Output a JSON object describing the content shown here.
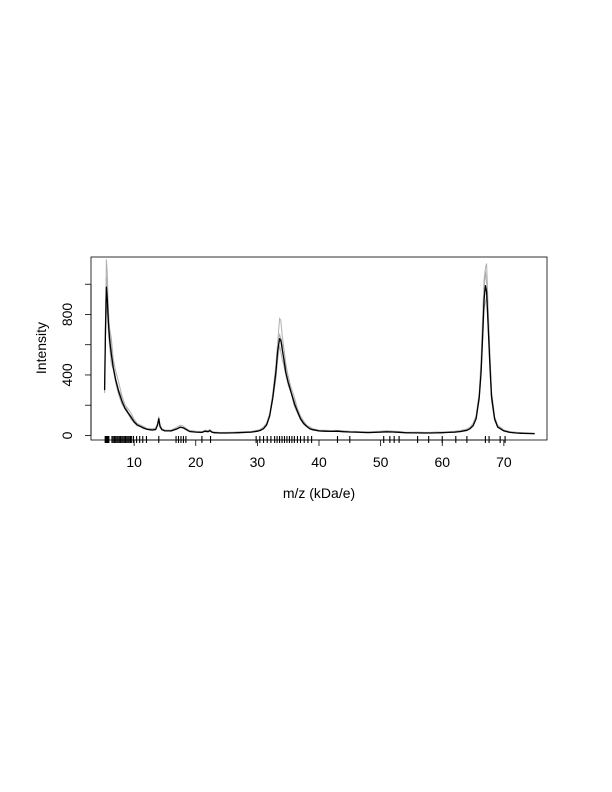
{
  "chart_data": {
    "type": "line",
    "title": "",
    "xlabel": "m/z (kDa/e)",
    "ylabel": "Intensity",
    "xlim": [
      3,
      77
    ],
    "ylim": [
      -30,
      1180
    ],
    "x_ticks": [
      10,
      20,
      30,
      40,
      50,
      60,
      70
    ],
    "y_ticks": [
      0,
      400,
      800
    ],
    "y_minor_ticks": [
      200,
      600,
      1000
    ],
    "grid": false,
    "legend": "none",
    "colors": {
      "mean_line": "#000000",
      "replicates": "#b0b0b0",
      "rug": "#000000"
    },
    "series": [
      {
        "style": "black line",
        "x": [
          5.2,
          5.35,
          5.5,
          5.65,
          5.8,
          6.0,
          6.3,
          6.6,
          7.0,
          7.5,
          8.0,
          8.5,
          9.0,
          9.5,
          10.0,
          10.5,
          11.0,
          11.5,
          12.0,
          12.5,
          13.0,
          13.5,
          13.8,
          14.0,
          14.2,
          14.5,
          15.0,
          16.0,
          17.0,
          17.5,
          18.0,
          18.5,
          19.0,
          20.0,
          21.0,
          21.5,
          22.0,
          22.3,
          22.6,
          23.0,
          24.0,
          25.0,
          26.0,
          27.0,
          28.0,
          29.0,
          30.0,
          30.5,
          31.0,
          31.5,
          32.0,
          32.5,
          33.0,
          33.3,
          33.6,
          33.8,
          34.0,
          34.3,
          34.6,
          35.0,
          35.5,
          36.0,
          36.5,
          37.0,
          37.5,
          38.0,
          38.5,
          39.0,
          40.0,
          41.0,
          42.0,
          43.0,
          44.0,
          45.0,
          46.0,
          47.0,
          48.0,
          49.0,
          50.0,
          51.0,
          52.0,
          53.0,
          54.0,
          55.0,
          56.0,
          57.0,
          58.0,
          59.0,
          60.0,
          61.0,
          62.0,
          63.0,
          64.0,
          64.5,
          65.0,
          65.5,
          66.0,
          66.3,
          66.6,
          66.8,
          67.0,
          67.2,
          67.4,
          67.7,
          68.0,
          68.5,
          69.0,
          70.0,
          71.0,
          72.0,
          73.0,
          74.0,
          75.0
        ],
        "y": [
          300,
          700,
          980,
          900,
          760,
          640,
          540,
          450,
          370,
          290,
          230,
          180,
          150,
          120,
          90,
          70,
          60,
          50,
          42,
          38,
          36,
          40,
          70,
          110,
          60,
          38,
          30,
          30,
          45,
          55,
          50,
          38,
          26,
          22,
          20,
          28,
          25,
          32,
          22,
          18,
          16,
          16,
          17,
          18,
          20,
          22,
          28,
          34,
          45,
          70,
          130,
          250,
          420,
          560,
          640,
          630,
          580,
          500,
          420,
          350,
          280,
          210,
          160,
          110,
          80,
          60,
          45,
          38,
          30,
          28,
          27,
          28,
          25,
          23,
          22,
          20,
          19,
          20,
          22,
          24,
          23,
          21,
          18,
          17,
          17,
          16,
          16,
          17,
          18,
          20,
          22,
          26,
          34,
          45,
          65,
          110,
          250,
          420,
          700,
          900,
          990,
          950,
          780,
          500,
          260,
          110,
          55,
          30,
          20,
          16,
          14,
          13,
          12
        ]
      }
    ],
    "peak_marks_x": [
      5.3,
      5.4,
      5.5,
      5.6,
      5.7,
      5.8,
      5.9,
      6.4,
      6.6,
      6.8,
      7.0,
      7.2,
      7.4,
      7.6,
      7.8,
      8.0,
      8.2,
      8.4,
      8.6,
      8.8,
      9.0,
      9.2,
      9.4,
      9.6,
      9.9,
      10.4,
      10.9,
      11.4,
      12.0,
      14.0,
      16.8,
      17.2,
      17.6,
      18.0,
      18.4,
      21.0,
      22.4,
      29.8,
      30.4,
      31.0,
      31.6,
      32.2,
      32.8,
      33.2,
      33.6,
      34.0,
      34.4,
      34.8,
      35.2,
      35.6,
      36.0,
      36.5,
      37.0,
      37.6,
      38.2,
      38.8,
      43.0,
      45.0,
      50.5,
      51.5,
      52.2,
      53.0,
      56.0,
      57.8,
      60.0,
      62.2,
      64.0,
      67.0,
      67.6,
      69.4,
      70.2
    ]
  }
}
